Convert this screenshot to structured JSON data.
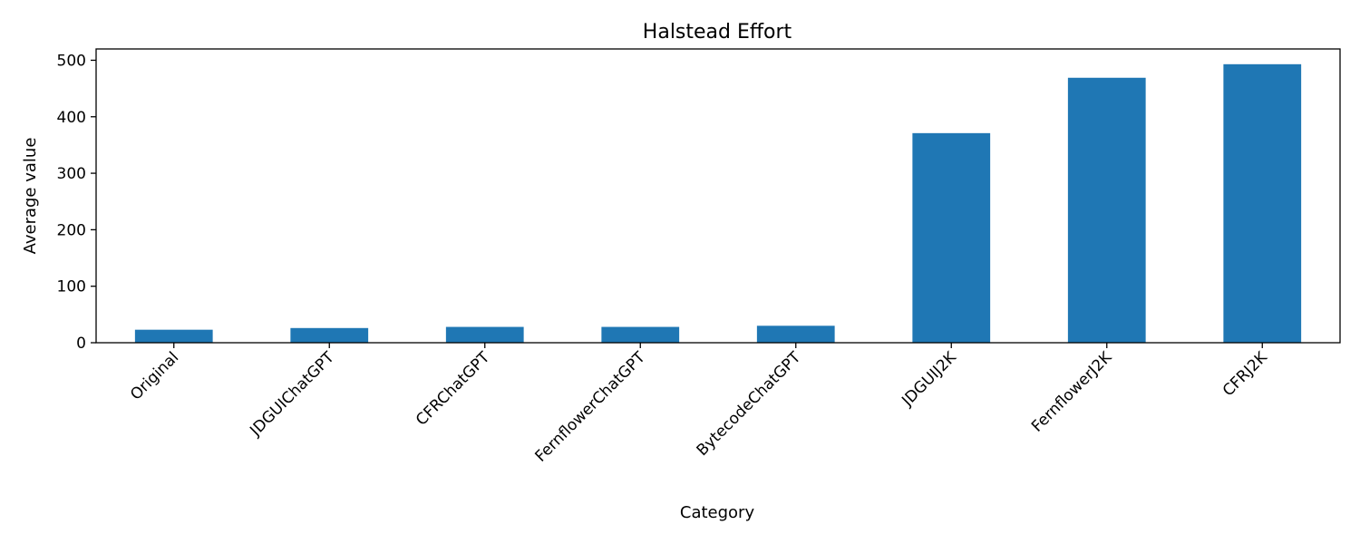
{
  "chart_data": {
    "type": "bar",
    "title": "Halstead Effort",
    "xlabel": "Category",
    "ylabel": "Average value",
    "categories": [
      "Original",
      "JDGUIChatGPT",
      "CFRChatGPT",
      "FernflowerChatGPT",
      "BytecodeChatGPT",
      "JDGUIJ2K",
      "FernflowerJ2K",
      "CFRJ2K"
    ],
    "values": [
      23,
      26,
      28,
      28,
      30,
      371,
      469,
      493
    ],
    "ylim": [
      0,
      520
    ],
    "yticks": [
      0,
      100,
      200,
      300,
      400,
      500
    ],
    "grid": false,
    "legend": "none",
    "bar_color": "#1f77b4"
  }
}
